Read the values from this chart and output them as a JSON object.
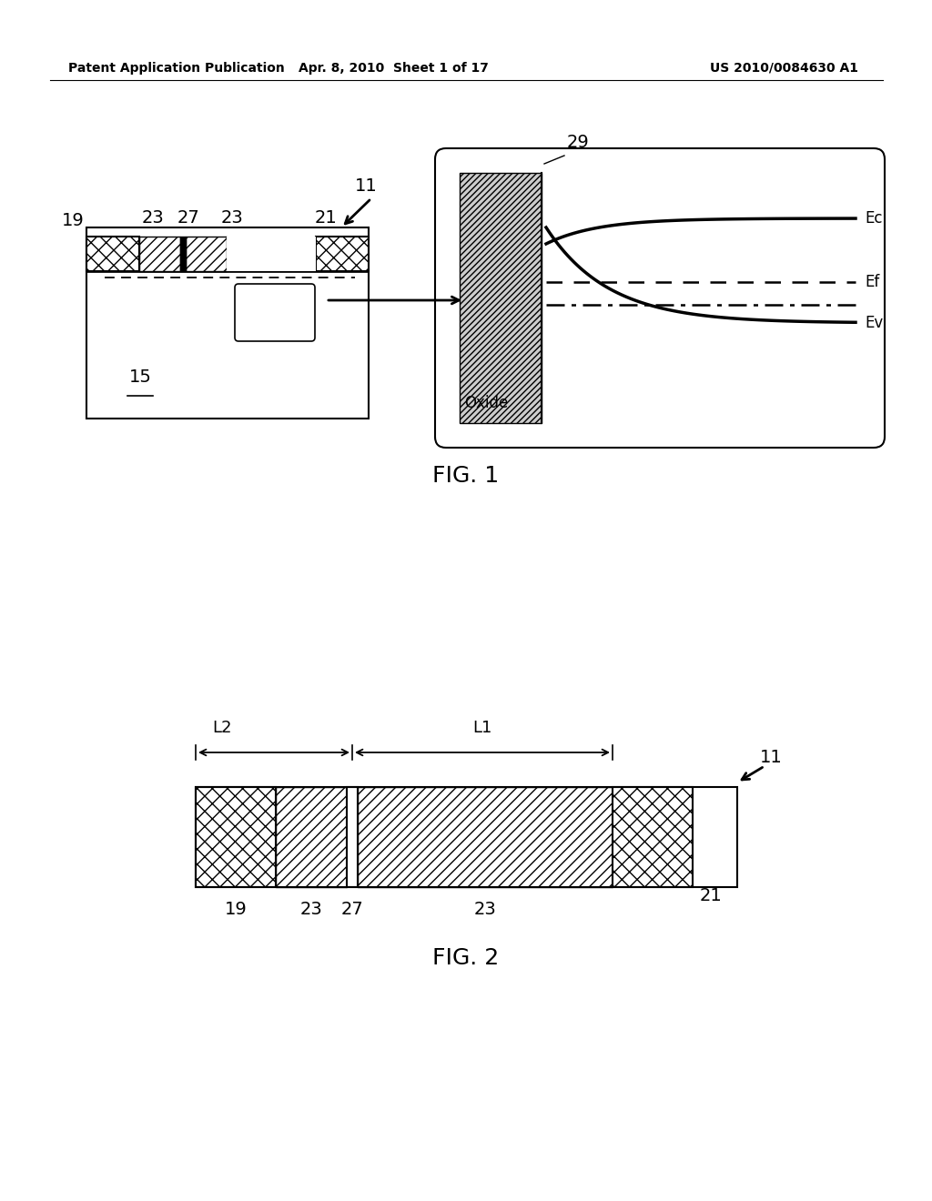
{
  "bg_color": "#ffffff",
  "header_text": "Patent Application Publication",
  "header_date": "Apr. 8, 2010  Sheet 1 of 17",
  "header_patent": "US 2010/0084630 A1"
}
